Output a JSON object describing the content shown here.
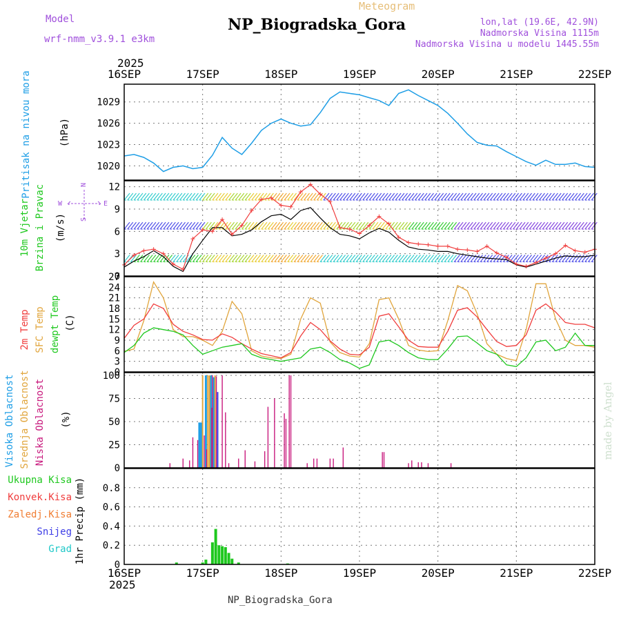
{
  "header": {
    "model_label": "Model",
    "model_name": "wrf-nmm_v3.9.1  e3km",
    "meteogram_label": "Meteogram",
    "station_title": "NP_Biogradska_Gora",
    "coords": "lon,lat (19.6E, 42.9N)",
    "elevation": "Nadmorska Visina 1115m",
    "model_elevation": "Nadmorska Visina u modelu 1445.55m",
    "year_top": "2025",
    "year_bottom": "2025",
    "footer_station": "NP_Biogradska_Gora",
    "watermark": "made by Angel"
  },
  "colors": {
    "pressure": "#1e9ee6",
    "wind_speed_max": "#f03c3c",
    "wind_speed_mean": "#000000",
    "temp_2m": "#f03c3c",
    "sfc_temp": "#e1a53c",
    "dewpt": "#1ec81e",
    "high_cloud": "#1e9ee6",
    "mid_cloud": "#e1a53c",
    "low_cloud": "#c8197d",
    "precip_total": "#1ec81e",
    "precip_conv": "#f03c3c",
    "precip_frz": "#f07d32",
    "snow": "#3c3ce6",
    "graupel": "#1ec8c8",
    "purple_text": "#a050dc",
    "title_orange": "#e6be78"
  },
  "chart_data": [
    {
      "type": "line",
      "name": "pressure-panel",
      "ylabel_left": "Pritisak na nivou mora",
      "ylabel_unit": "(hPa)",
      "x_categories": [
        "16SEP",
        "17SEP",
        "18SEP",
        "19SEP",
        "20SEP",
        "21SEP",
        "22SEP"
      ],
      "xlim_hours": [
        0,
        144
      ],
      "ylim": [
        1018,
        1031.5
      ],
      "yticks": [
        1020,
        1023,
        1026,
        1029
      ],
      "series": [
        {
          "name": "Pritisak na nivou mora",
          "hours": [
            0,
            3,
            6,
            9,
            12,
            15,
            18,
            21,
            24,
            27,
            30,
            33,
            36,
            39,
            42,
            45,
            48,
            51,
            54,
            57,
            60,
            63,
            66,
            69,
            72,
            75,
            78,
            81,
            84,
            87,
            90,
            93,
            96,
            99,
            102,
            105,
            108,
            111,
            114,
            117,
            120,
            123,
            126,
            129,
            132,
            135,
            138,
            141,
            144
          ],
          "values": [
            1021.4,
            1021.6,
            1021.2,
            1020.4,
            1019.2,
            1019.8,
            1020.0,
            1019.6,
            1019.8,
            1021.5,
            1024.0,
            1022.5,
            1021.6,
            1023.2,
            1025.0,
            1026.0,
            1026.6,
            1026.0,
            1025.6,
            1025.8,
            1027.5,
            1029.5,
            1030.4,
            1030.2,
            1030.0,
            1029.6,
            1029.2,
            1028.5,
            1030.2,
            1030.7,
            1029.9,
            1029.2,
            1028.5,
            1027.4,
            1026.0,
            1024.5,
            1023.3,
            1022.9,
            1022.8,
            1022.0,
            1021.3,
            1020.6,
            1020.1,
            1020.8,
            1020.2,
            1020.2,
            1020.4,
            1019.9,
            1019.8
          ]
        }
      ]
    },
    {
      "type": "line",
      "name": "wind-panel",
      "ylabel_left_1": "10m Vjetar",
      "ylabel_left_2": "Brzina i Pravac",
      "ylabel_unit": "(m/s)",
      "compass": {
        "n": "N",
        "s": "S",
        "e": "E",
        "w": "W"
      },
      "ylim": [
        0,
        12.8
      ],
      "yticks": [
        0,
        3,
        6,
        9,
        12
      ],
      "series": [
        {
          "name": "max wind speed",
          "hours": [
            0,
            3,
            6,
            9,
            12,
            15,
            18,
            21,
            24,
            27,
            30,
            33,
            36,
            39,
            42,
            45,
            48,
            51,
            54,
            57,
            60,
            63,
            66,
            69,
            72,
            75,
            78,
            81,
            84,
            87,
            90,
            93,
            96,
            99,
            102,
            105,
            108,
            111,
            114,
            117,
            120,
            123,
            126,
            129,
            132,
            135,
            138,
            141,
            144
          ],
          "values": [
            1.5,
            2.8,
            3.4,
            3.6,
            3.0,
            1.6,
            0.9,
            5.0,
            6.2,
            6.0,
            7.6,
            5.6,
            6.8,
            8.8,
            10.3,
            10.5,
            9.5,
            9.3,
            11.3,
            12.3,
            11.0,
            10.0,
            6.5,
            6.3,
            5.7,
            6.8,
            8.0,
            7.0,
            5.2,
            4.5,
            4.3,
            4.2,
            4.0,
            4.0,
            3.6,
            3.5,
            3.3,
            4.0,
            3.1,
            2.5,
            1.6,
            1.3,
            1.8,
            2.4,
            3.0,
            4.1,
            3.4,
            3.2,
            3.6
          ]
        },
        {
          "name": "mean wind speed",
          "hours": [
            0,
            3,
            6,
            9,
            12,
            15,
            18,
            21,
            24,
            27,
            30,
            33,
            36,
            39,
            42,
            45,
            48,
            51,
            54,
            57,
            60,
            63,
            66,
            69,
            72,
            75,
            78,
            81,
            84,
            87,
            90,
            93,
            96,
            99,
            102,
            105,
            108,
            111,
            114,
            117,
            120,
            123,
            126,
            129,
            132,
            135,
            138,
            141,
            144
          ],
          "values": [
            1.2,
            2.0,
            2.6,
            3.4,
            2.6,
            1.3,
            0.6,
            3.0,
            4.8,
            6.5,
            6.5,
            5.4,
            5.6,
            6.2,
            7.3,
            8.1,
            8.3,
            7.6,
            8.8,
            9.2,
            7.8,
            6.5,
            5.6,
            5.4,
            5.0,
            5.8,
            6.4,
            5.9,
            4.8,
            3.9,
            3.6,
            3.5,
            3.3,
            3.3,
            3.0,
            2.8,
            2.6,
            2.4,
            2.3,
            2.2,
            1.5,
            1.2,
            1.6,
            2.0,
            2.4,
            2.7,
            2.6,
            2.6,
            2.8
          ]
        }
      ]
    },
    {
      "type": "line",
      "name": "temperature-panel",
      "ylabel_left_1": "2m Temp",
      "ylabel_left_2": "SFC Temp",
      "ylabel_left_3": "dewpt Temp",
      "ylabel_unit": "(C)",
      "ylim": [
        0,
        27
      ],
      "yticks": [
        0,
        3,
        6,
        9,
        12,
        15,
        18,
        21,
        24,
        27
      ],
      "series": [
        {
          "name": "2m Temp",
          "hours": [
            0,
            3,
            6,
            9,
            12,
            15,
            18,
            21,
            24,
            27,
            30,
            33,
            36,
            39,
            42,
            45,
            48,
            51,
            54,
            57,
            60,
            63,
            66,
            69,
            72,
            75,
            78,
            81,
            84,
            87,
            90,
            93,
            96,
            99,
            102,
            105,
            108,
            111,
            114,
            117,
            120,
            123,
            126,
            129,
            132,
            135,
            138,
            141,
            144
          ],
          "values": [
            9.5,
            13.2,
            15.0,
            19.3,
            18.0,
            13.5,
            11.5,
            10.5,
            9.2,
            9.0,
            10.8,
            9.8,
            8.0,
            6.5,
            5.2,
            4.6,
            4.0,
            5.5,
            10.2,
            14.0,
            12.0,
            8.8,
            6.5,
            5.0,
            4.8,
            7.0,
            15.8,
            16.5,
            12.8,
            9.0,
            7.2,
            7.0,
            7.0,
            11.5,
            17.5,
            18.2,
            15.6,
            12.0,
            8.6,
            7.2,
            7.5,
            10.5,
            17.5,
            19.3,
            17.0,
            14.0,
            13.5,
            13.5,
            12.5
          ]
        },
        {
          "name": "SFC Temp",
          "hours": [
            0,
            3,
            6,
            9,
            12,
            15,
            18,
            21,
            24,
            27,
            30,
            33,
            36,
            39,
            42,
            45,
            48,
            51,
            54,
            57,
            60,
            63,
            66,
            69,
            72,
            75,
            78,
            81,
            84,
            87,
            90,
            93,
            96,
            99,
            102,
            105,
            108,
            111,
            114,
            117,
            120,
            123,
            126,
            129,
            132,
            135,
            138,
            141,
            144
          ],
          "values": [
            5.8,
            6.5,
            14.5,
            25.5,
            21.0,
            12.0,
            10.0,
            10.0,
            9.0,
            7.5,
            11.5,
            20.0,
            16.5,
            6.0,
            4.5,
            4.0,
            3.8,
            5.0,
            15.0,
            21.0,
            19.5,
            8.5,
            5.5,
            4.5,
            4.2,
            8.0,
            20.5,
            21.0,
            15.0,
            7.5,
            6.2,
            5.8,
            6.0,
            14.5,
            24.5,
            23.0,
            16.5,
            8.0,
            5.0,
            3.8,
            3.2,
            12.0,
            25.0,
            25.0,
            15.0,
            9.0,
            7.5,
            7.5,
            7.0
          ]
        },
        {
          "name": "dewpt Temp",
          "hours": [
            0,
            3,
            6,
            9,
            12,
            15,
            18,
            21,
            24,
            27,
            30,
            33,
            36,
            39,
            42,
            45,
            48,
            51,
            54,
            57,
            60,
            63,
            66,
            69,
            72,
            75,
            78,
            81,
            84,
            87,
            90,
            93,
            96,
            99,
            102,
            105,
            108,
            111,
            114,
            117,
            120,
            123,
            126,
            129,
            132,
            135,
            138,
            141,
            144
          ],
          "values": [
            5.5,
            7.5,
            11.0,
            12.5,
            12.0,
            11.5,
            10.5,
            7.5,
            5.0,
            6.0,
            7.0,
            7.5,
            8.0,
            5.0,
            4.0,
            3.5,
            3.0,
            3.5,
            4.0,
            6.5,
            7.0,
            5.5,
            3.5,
            2.5,
            1.0,
            2.0,
            8.5,
            9.0,
            7.5,
            5.5,
            4.0,
            3.5,
            3.5,
            6.5,
            10.0,
            10.2,
            8.2,
            6.0,
            5.0,
            2.0,
            1.5,
            4.0,
            8.5,
            9.0,
            6.0,
            7.0,
            11.0,
            7.5,
            7.5
          ]
        }
      ]
    },
    {
      "type": "bar",
      "name": "cloud-panel",
      "ylabel_left_1": "Visoka Oblacnost",
      "ylabel_left_2": "Srednja Oblacnost",
      "ylabel_left_3": "Niska Oblacnost",
      "ylabel_unit": "(%)",
      "ylim": [
        0,
        103
      ],
      "yticks": [
        0,
        25,
        50,
        75,
        100
      ],
      "series": [
        {
          "name": "Visoka Oblacnost",
          "hours": [
            23,
            23.6,
            25,
            26.5,
            27.4
          ],
          "values": [
            49,
            49,
            100,
            100,
            98
          ]
        },
        {
          "name": "Srednja Oblacnost",
          "hours": [
            24,
            25.6,
            26.1,
            27.8
          ],
          "values": [
            100,
            100,
            100,
            100
          ]
        },
        {
          "name": "Niska Oblacnost",
          "hours": [
            14,
            18,
            20,
            21,
            22.5,
            24.5,
            25.2,
            26.8,
            27,
            28.2,
            30,
            31,
            32,
            35,
            37,
            40,
            43,
            44,
            46,
            49,
            49.5,
            50.5,
            51,
            56,
            58,
            59,
            63,
            64,
            67,
            79,
            79.5,
            87,
            88,
            90,
            91,
            93,
            100
          ],
          "values": [
            5,
            10,
            8,
            33,
            30,
            35,
            20,
            65,
            100,
            99,
            100,
            60,
            5,
            10,
            19,
            7,
            18,
            66,
            75,
            59,
            53,
            100,
            100,
            5,
            10,
            10,
            10,
            10,
            22,
            17,
            17,
            5,
            8,
            6,
            6,
            5,
            5
          ]
        },
        {
          "name": "Snijeg",
          "hours": [
            28.6
          ],
          "values": [
            82
          ]
        }
      ]
    },
    {
      "type": "bar",
      "name": "precip-panel",
      "legend": [
        "Ukupna Kisa",
        "Konvek.Kisa",
        "Zaledj.Kisa",
        "Snijeg",
        "Grad"
      ],
      "ylabel_unit": "1hr Precip (mm)",
      "ylim": [
        0,
        1.0
      ],
      "yticks": [
        0,
        0.2,
        0.4,
        0.6,
        0.8
      ],
      "series": [
        {
          "name": "Ukupna Kisa",
          "hours": [
            16,
            24,
            25,
            27,
            28,
            29,
            30,
            31,
            32,
            33,
            35,
            50
          ],
          "values": [
            0.02,
            0.02,
            0.05,
            0.23,
            0.37,
            0.2,
            0.19,
            0.18,
            0.12,
            0.06,
            0.02,
            0.01
          ]
        }
      ]
    }
  ],
  "wind_barbs": {
    "upper_band_color_note": "colored barbs upper level",
    "bands": [
      {
        "hours": [
          0,
          24
        ],
        "level": 11.5
      },
      {
        "hours": [
          24,
          144
        ],
        "level": 11.3
      }
    ]
  }
}
